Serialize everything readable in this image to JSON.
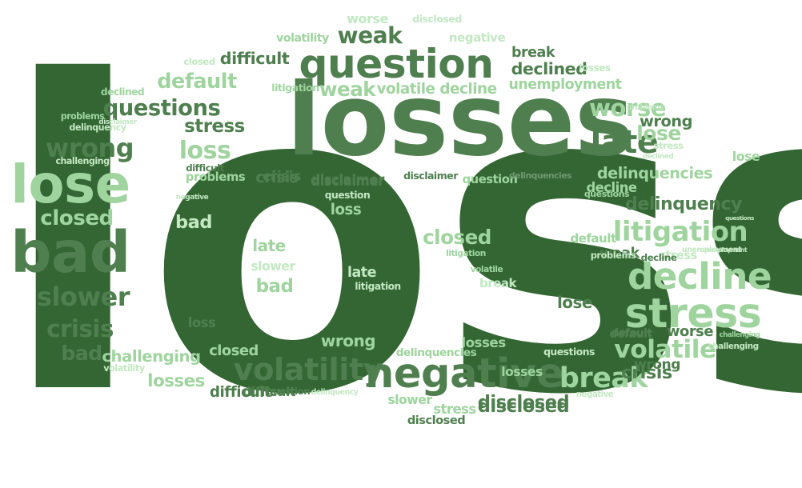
{
  "palette": {
    "dark": "#336633",
    "mid": "#4f7f4f",
    "muted": "#6f9a6f",
    "light": "#9fd49f",
    "pale": "#c3e8c3"
  },
  "words": [
    {
      "text": "loss",
      "tone": "dark"
    },
    {
      "text": "losses",
      "tone": "mid"
    },
    {
      "text": "question",
      "tone": "mid"
    },
    {
      "text": "negative",
      "tone": "mid"
    },
    {
      "text": "volatility",
      "tone": "mid"
    },
    {
      "text": "bad",
      "tone": "mid"
    },
    {
      "text": "lose",
      "tone": "light"
    },
    {
      "text": "decline",
      "tone": "light"
    },
    {
      "text": "stress",
      "tone": "light"
    },
    {
      "text": "late",
      "tone": "mid"
    },
    {
      "text": "litigation",
      "tone": "light"
    },
    {
      "text": "questions",
      "tone": "mid"
    },
    {
      "text": "wrong",
      "tone": "mid"
    },
    {
      "text": "crisis",
      "tone": "mid"
    },
    {
      "text": "slower",
      "tone": "mid"
    },
    {
      "text": "closed",
      "tone": "light"
    },
    {
      "text": "weak",
      "tone": "mid"
    },
    {
      "text": "default",
      "tone": "light"
    },
    {
      "text": "worse",
      "tone": "light"
    },
    {
      "text": "delinquency",
      "tone": "mid"
    },
    {
      "text": "delinquencies",
      "tone": "light"
    },
    {
      "text": "volatile",
      "tone": "light"
    },
    {
      "text": "break",
      "tone": "light"
    },
    {
      "text": "challenging",
      "tone": "light"
    },
    {
      "text": "disclosed",
      "tone": "mid"
    },
    {
      "text": "losses",
      "tone": "light"
    },
    {
      "text": "difficult",
      "tone": "mid"
    },
    {
      "text": "declined",
      "tone": "mid"
    },
    {
      "text": "unemployment",
      "tone": "light"
    },
    {
      "text": "loss",
      "tone": "light"
    },
    {
      "text": "stress",
      "tone": "mid"
    },
    {
      "text": "problems",
      "tone": "light"
    },
    {
      "text": "crisis",
      "tone": "mid"
    },
    {
      "text": "disclaimer",
      "tone": "mid"
    },
    {
      "text": "weak",
      "tone": "light"
    },
    {
      "text": "volatile",
      "tone": "light"
    },
    {
      "text": "decline",
      "tone": "light"
    },
    {
      "text": "volatility",
      "tone": "light"
    },
    {
      "text": "disclosed",
      "tone": "pale"
    },
    {
      "text": "negative",
      "tone": "pale"
    },
    {
      "text": "worse",
      "tone": "pale"
    },
    {
      "text": "break",
      "tone": "mid"
    },
    {
      "text": "losses",
      "tone": "pale"
    },
    {
      "text": "closed",
      "tone": "pale"
    },
    {
      "text": "difficult",
      "tone": "mid"
    },
    {
      "text": "declined",
      "tone": "light"
    },
    {
      "text": "litigation",
      "tone": "light"
    },
    {
      "text": "problems",
      "tone": "pale"
    },
    {
      "text": "disclaimer",
      "tone": "pale"
    },
    {
      "text": "delinquency",
      "tone": "pale"
    },
    {
      "text": "challenging",
      "tone": "pale"
    },
    {
      "text": "difficult",
      "tone": "mid"
    },
    {
      "text": "problems",
      "tone": "light"
    },
    {
      "text": "crisis",
      "tone": "mid"
    },
    {
      "text": "disclaimer",
      "tone": "mid"
    },
    {
      "text": "disclaimer",
      "tone": "mid"
    },
    {
      "text": "question",
      "tone": "light"
    },
    {
      "text": "delinquencies",
      "tone": "muted"
    },
    {
      "text": "question",
      "tone": "pale"
    },
    {
      "text": "decline",
      "tone": "light"
    },
    {
      "text": "negative",
      "tone": "pale"
    },
    {
      "text": "loss",
      "tone": "light"
    },
    {
      "text": "bad",
      "tone": "pale"
    },
    {
      "text": "closed",
      "tone": "light"
    },
    {
      "text": "litigation",
      "tone": "light"
    },
    {
      "text": "volatile",
      "tone": "light"
    },
    {
      "text": "break",
      "tone": "pale"
    },
    {
      "text": "late",
      "tone": "light"
    },
    {
      "text": "slower",
      "tone": "pale"
    },
    {
      "text": "bad",
      "tone": "light"
    },
    {
      "text": "late",
      "tone": "pale"
    },
    {
      "text": "litigation",
      "tone": "pale"
    },
    {
      "text": "default",
      "tone": "light"
    },
    {
      "text": "lose",
      "tone": "mid"
    },
    {
      "text": "weak",
      "tone": "mid"
    },
    {
      "text": "stress",
      "tone": "pale"
    },
    {
      "text": "lose",
      "tone": "light"
    },
    {
      "text": "wrong",
      "tone": "mid"
    },
    {
      "text": "worse",
      "tone": "mid"
    },
    {
      "text": "declined",
      "tone": "pale"
    },
    {
      "text": "disclosed",
      "tone": "mid"
    },
    {
      "text": "bad",
      "tone": "mid"
    },
    {
      "text": "volatility",
      "tone": "pale"
    },
    {
      "text": "loss",
      "tone": "mid"
    },
    {
      "text": "closed",
      "tone": "light"
    },
    {
      "text": "wrong",
      "tone": "light"
    },
    {
      "text": "delinquencies",
      "tone": "light"
    },
    {
      "text": "losses",
      "tone": "light"
    },
    {
      "text": "questions",
      "tone": "pale"
    },
    {
      "text": "losses",
      "tone": "light"
    },
    {
      "text": "difficult",
      "tone": "mid"
    },
    {
      "text": "question",
      "tone": "mid"
    },
    {
      "text": "delinquency",
      "tone": "pale"
    },
    {
      "text": "slower",
      "tone": "light"
    },
    {
      "text": "stress",
      "tone": "light"
    },
    {
      "text": "disclosed",
      "tone": "mid"
    },
    {
      "text": "default",
      "tone": "mid"
    },
    {
      "text": "challenging",
      "tone": "light"
    },
    {
      "text": "negative",
      "tone": "pale"
    },
    {
      "text": "crisis",
      "tone": "mid"
    },
    {
      "text": "questions",
      "tone": "light"
    },
    {
      "text": "problems",
      "tone": "pale"
    },
    {
      "text": "decline",
      "tone": "mid"
    },
    {
      "text": "unemployment",
      "tone": "pale"
    },
    {
      "text": "questions",
      "tone": "pale"
    },
    {
      "text": "lose",
      "tone": "light"
    },
    {
      "text": "stress",
      "tone": "pale"
    },
    {
      "text": "wrong",
      "tone": "mid"
    },
    {
      "text": "unemployment",
      "tone": "pale"
    },
    {
      "text": "challenging",
      "tone": "pale"
    },
    {
      "text": "default",
      "tone": "mid"
    }
  ]
}
